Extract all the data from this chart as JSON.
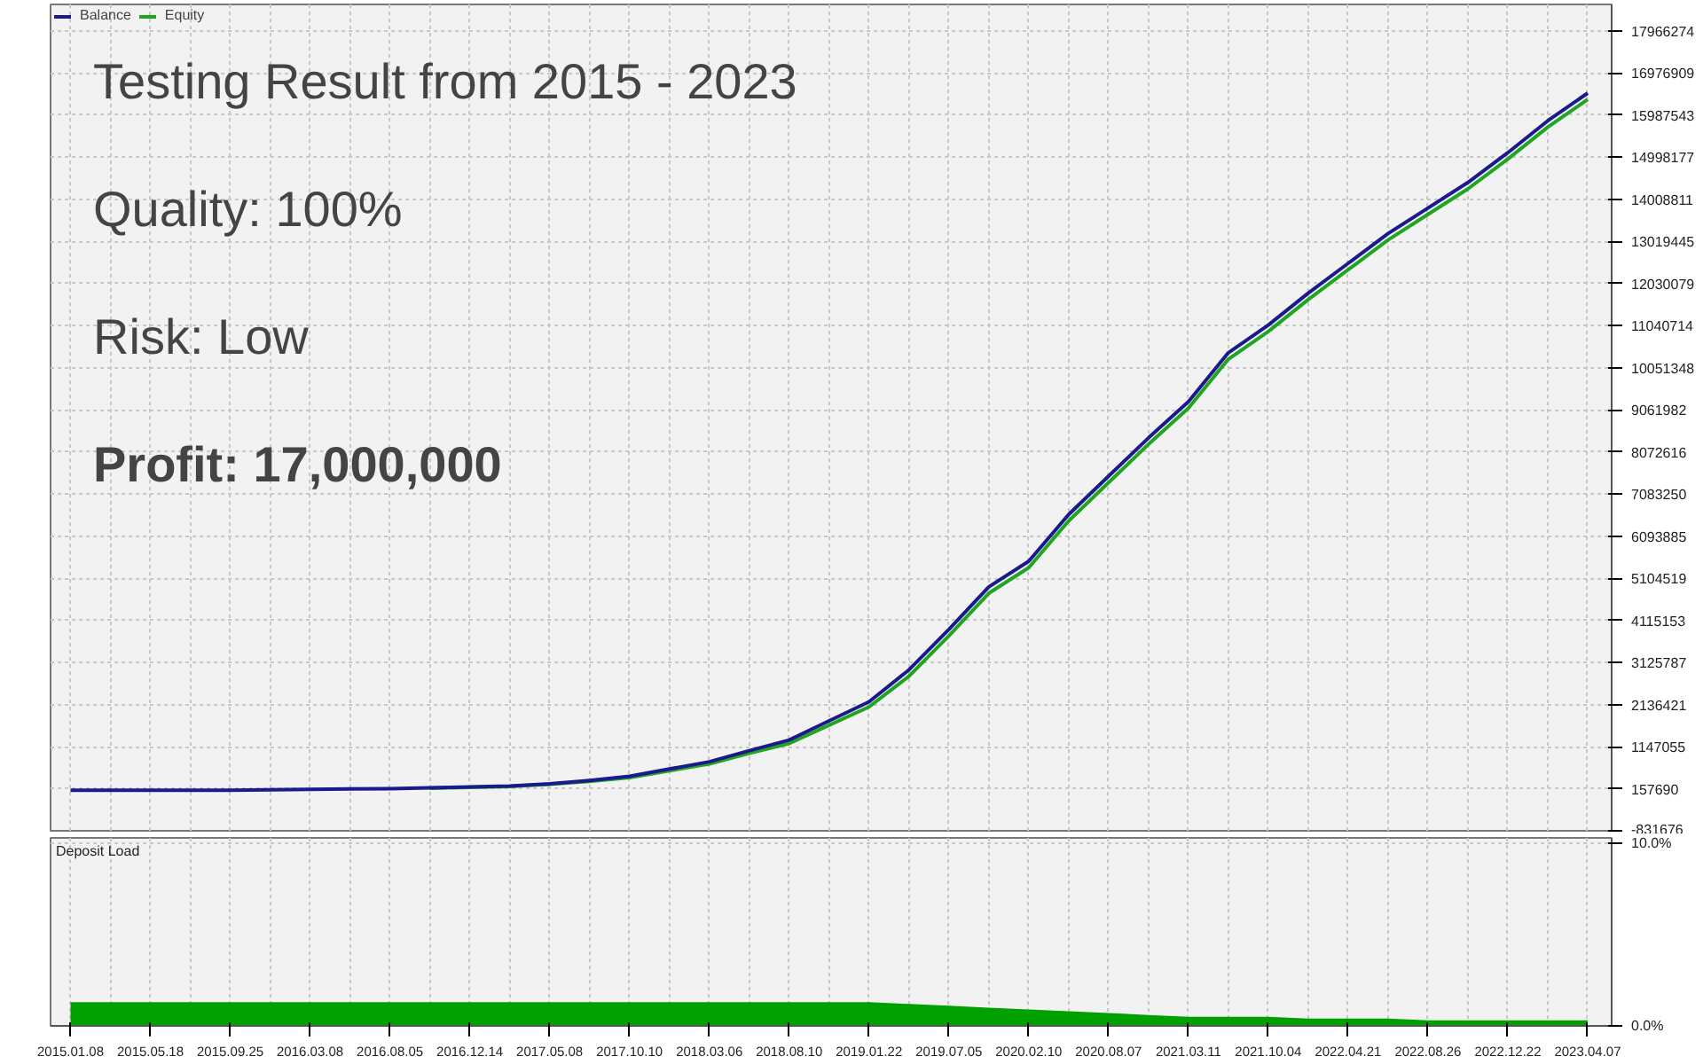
{
  "chart_data": [
    {
      "type": "line",
      "annotations": [
        "Testing Result from 2015 - 2023",
        "Quality: 100%",
        "Risk: Low",
        "Profit: 17,000,000"
      ],
      "categories": [
        "2015.01.08",
        null,
        "2015.05.18",
        null,
        "2015.09.25",
        null,
        "2016.03.08",
        null,
        "2016.08.05",
        null,
        "2016.12.14",
        null,
        "2017.05.08",
        null,
        "2017.10.10",
        null,
        "2018.03.06",
        null,
        "2018.08.10",
        null,
        "2019.01.22",
        null,
        "2019.07.05",
        null,
        "2020.02.10",
        null,
        "2020.08.07",
        null,
        "2021.03.11",
        null,
        "2021.10.04",
        null,
        "2022.04.21",
        null,
        "2022.08.26",
        null,
        "2022.12.22",
        null,
        "2023.04.07"
      ],
      "series": [
        {
          "name": "Balance",
          "color": "#1a1a8c",
          "values": [
            120000,
            120000,
            120000,
            120000,
            120000,
            130000,
            140000,
            150000,
            160000,
            180000,
            200000,
            220000,
            270000,
            350000,
            450000,
            620000,
            790000,
            1050000,
            1300000,
            1750000,
            2200000,
            2950000,
            3900000,
            4900000,
            5500000,
            6600000,
            7500000,
            8400000,
            9250000,
            10400000,
            11050000,
            11800000,
            12500000,
            13200000,
            13800000,
            14400000,
            15100000,
            15850000,
            16500000
          ]
        },
        {
          "name": "Equity",
          "color": "#1fa51f",
          "values": [
            null,
            null,
            null,
            null,
            null,
            null,
            null,
            null,
            null,
            170000,
            190000,
            210000,
            260000,
            330000,
            420000,
            580000,
            740000,
            990000,
            1220000,
            1650000,
            2080000,
            2800000,
            3750000,
            4750000,
            5350000,
            6450000,
            7350000,
            8250000,
            9100000,
            10250000,
            10900000,
            11650000,
            12350000,
            13050000,
            13650000,
            14250000,
            14950000,
            15700000,
            16350000
          ]
        }
      ],
      "ylim": [
        -831676,
        18583000
      ],
      "yticks": [
        -831676,
        157690,
        1147055,
        2136421,
        3125787,
        4115153,
        5104519,
        6093885,
        7083250,
        8072616,
        9061982,
        10051348,
        11040714,
        12030079,
        13019445,
        14008811,
        14998177,
        15987543,
        16976909,
        17966274
      ],
      "tick_labels": "y",
      "grid": true,
      "legend": "top left",
      "line_style": "solid",
      "marker": "none"
    },
    {
      "type": "area",
      "title": "Deposit Load",
      "categories": [
        "2015.01.08",
        null,
        "2015.05.18",
        null,
        "2015.09.25",
        null,
        "2016.03.08",
        null,
        "2016.08.05",
        null,
        "2016.12.14",
        null,
        "2017.05.08",
        null,
        "2017.10.10",
        null,
        "2018.03.06",
        null,
        "2018.08.10",
        null,
        "2019.01.22",
        null,
        "2019.07.05",
        null,
        "2020.02.10",
        null,
        "2020.08.07",
        null,
        "2021.03.11",
        null,
        "2021.10.04",
        null,
        "2022.04.21",
        null,
        "2022.08.26",
        null,
        "2022.12.22",
        null,
        "2023.04.07"
      ],
      "values": [
        1.3,
        1.3,
        1.3,
        1.3,
        1.3,
        1.3,
        1.3,
        1.3,
        1.3,
        1.3,
        1.3,
        1.3,
        1.3,
        1.3,
        1.3,
        1.3,
        1.3,
        1.3,
        1.3,
        1.3,
        1.3,
        1.2,
        1.1,
        1.0,
        0.9,
        0.8,
        0.7,
        0.6,
        0.5,
        0.5,
        0.5,
        0.4,
        0.4,
        0.4,
        0.3,
        0.3,
        0.3,
        0.3,
        0.3
      ],
      "color": "#00a000",
      "ylim": [
        0,
        10.3
      ],
      "yticks": [
        {
          "value": 0,
          "label": "0.0%"
        },
        {
          "value": 10,
          "label": "10.0%"
        }
      ],
      "grid": true
    }
  ]
}
